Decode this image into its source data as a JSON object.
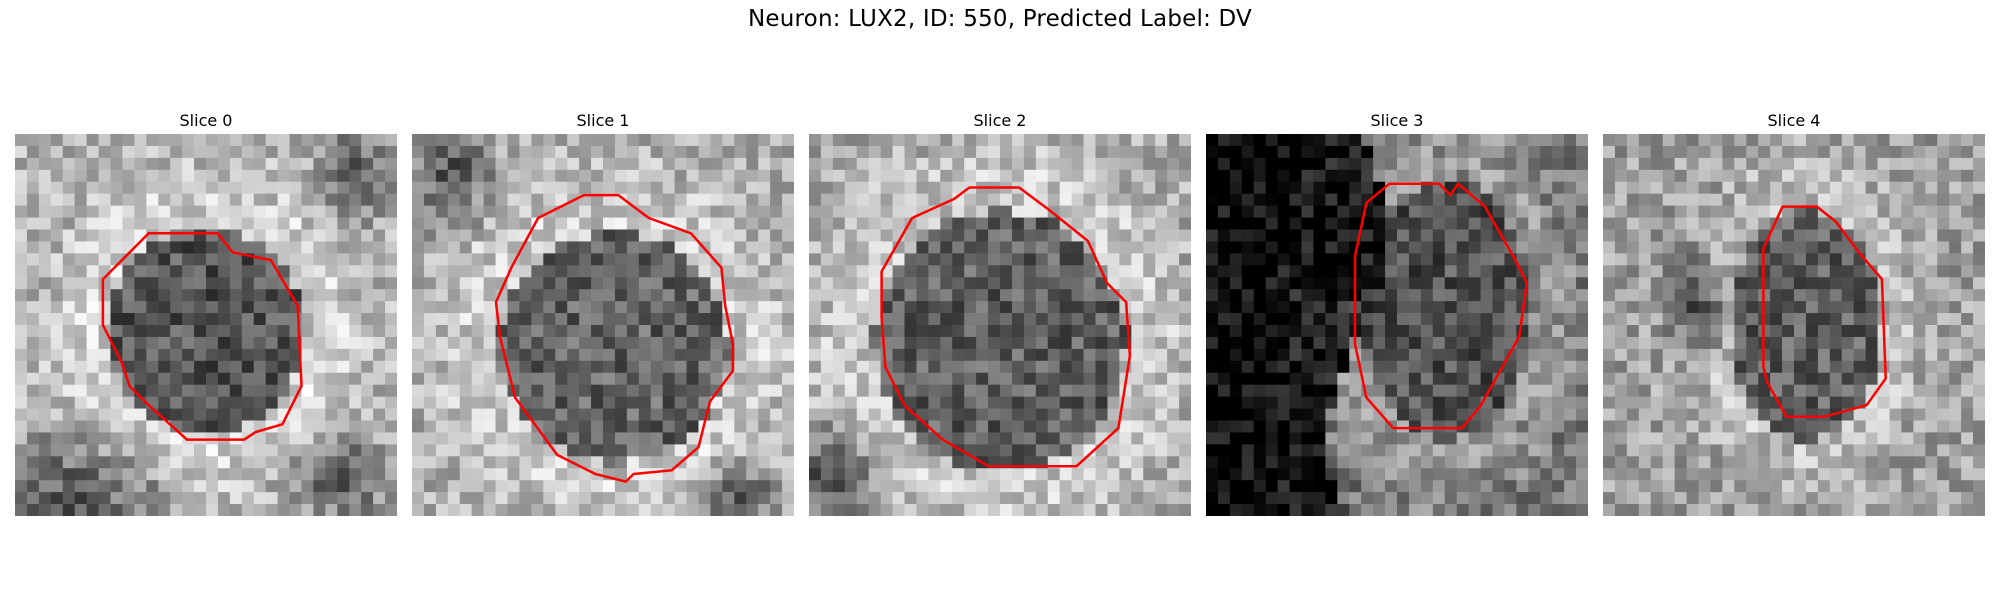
{
  "figure": {
    "title": "Neuron: LUX2, ID: 550, Predicted Label: DV"
  },
  "panels": [
    {
      "title": "Slice 0",
      "image": "grayscale-microscopy-slice-with-red-cell-contour"
    },
    {
      "title": "Slice 1",
      "image": "grayscale-microscopy-slice-with-red-cell-contour"
    },
    {
      "title": "Slice 2",
      "image": "grayscale-microscopy-slice-with-red-cell-contour"
    },
    {
      "title": "Slice 3",
      "image": "grayscale-microscopy-slice-with-red-cell-contour"
    },
    {
      "title": "Slice 4",
      "image": "grayscale-microscopy-slice-with-red-cell-contour"
    }
  ],
  "colors": {
    "contour": "#ff0000",
    "background": "#ffffff"
  }
}
